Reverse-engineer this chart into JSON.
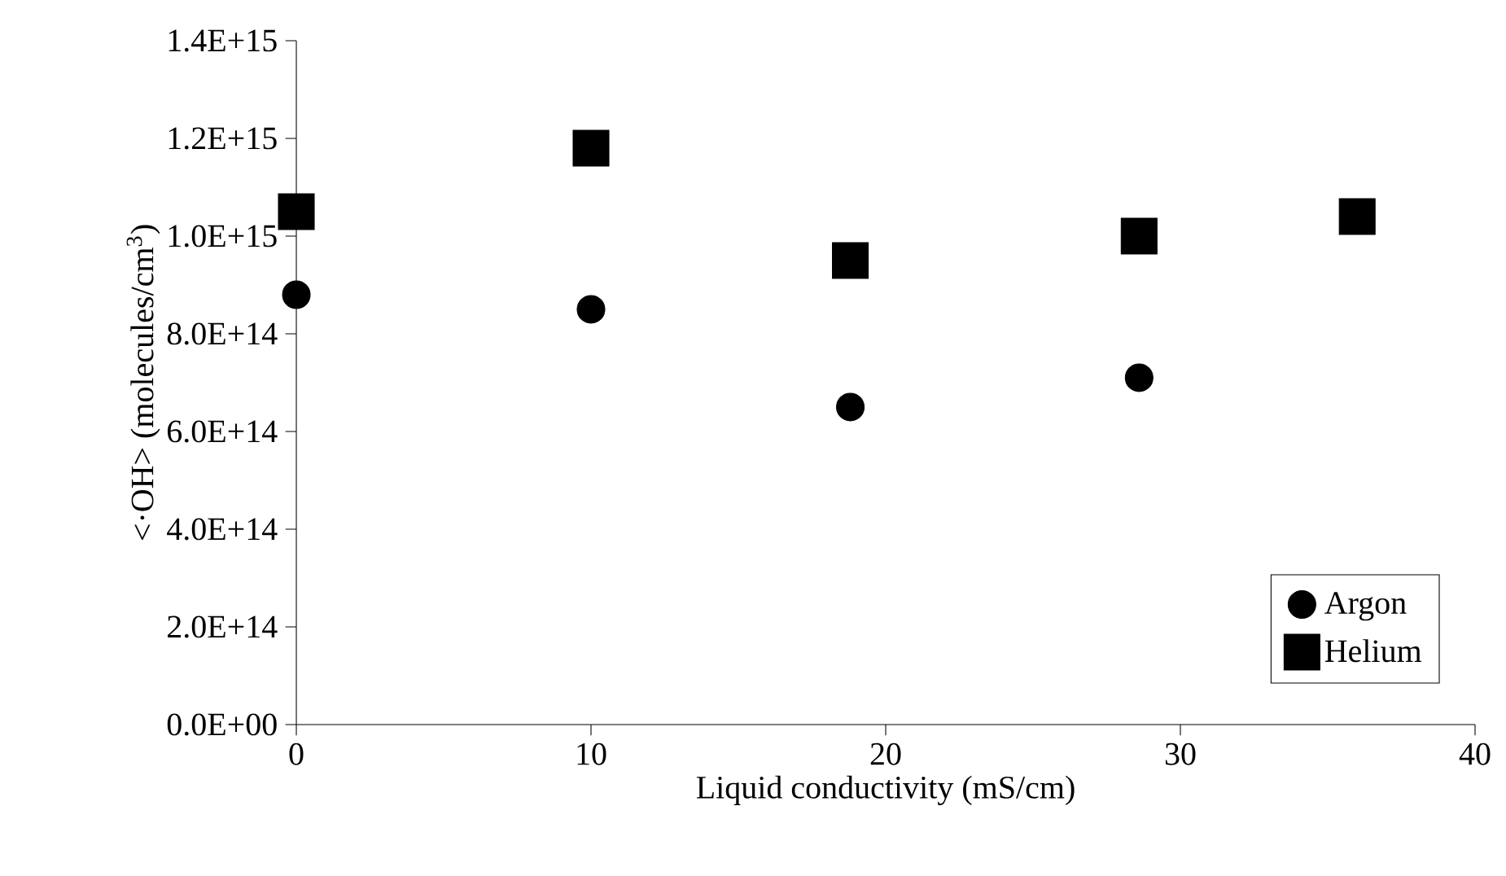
{
  "chart_data": {
    "type": "scatter",
    "xlabel": "Liquid conductivity (mS/cm)",
    "ylabel": "<·OH> (molecules/cm$^{3}$)",
    "xlim": [
      0,
      40
    ],
    "xticks": [
      0,
      10,
      20,
      30,
      40
    ],
    "ylim": [
      0,
      1400000000000000.0
    ],
    "yticks": [
      {
        "value": 0,
        "label": "0.0E+00"
      },
      {
        "value": 200000000000000.0,
        "label": "2.0E+14"
      },
      {
        "value": 400000000000000.0,
        "label": "4.0E+14"
      },
      {
        "value": 600000000000000.0,
        "label": "6.0E+14"
      },
      {
        "value": 800000000000000.0,
        "label": "8.0E+14"
      },
      {
        "value": 1000000000000000.0,
        "label": "1.0E+15"
      },
      {
        "value": 1200000000000000.0,
        "label": "1.2E+15"
      },
      {
        "value": 1400000000000000.0,
        "label": "1.4E+15"
      }
    ],
    "grid": false,
    "legend": "bottom right",
    "series": [
      {
        "name": "Argon",
        "color": "#000000",
        "marker": "circle",
        "x": [
          0,
          10,
          18.8,
          28.6
        ],
        "values": [
          880000000000000.0,
          850000000000000.0,
          650000000000000.0,
          710000000000000.0
        ]
      },
      {
        "name": "Helium",
        "color": "#000000",
        "marker": "square",
        "x": [
          0,
          10,
          18.8,
          28.6,
          36
        ],
        "values": [
          1050000000000000.0,
          1180000000000000.0,
          950000000000000.0,
          1000000000000000.0,
          1040000000000000.0
        ]
      }
    ]
  }
}
